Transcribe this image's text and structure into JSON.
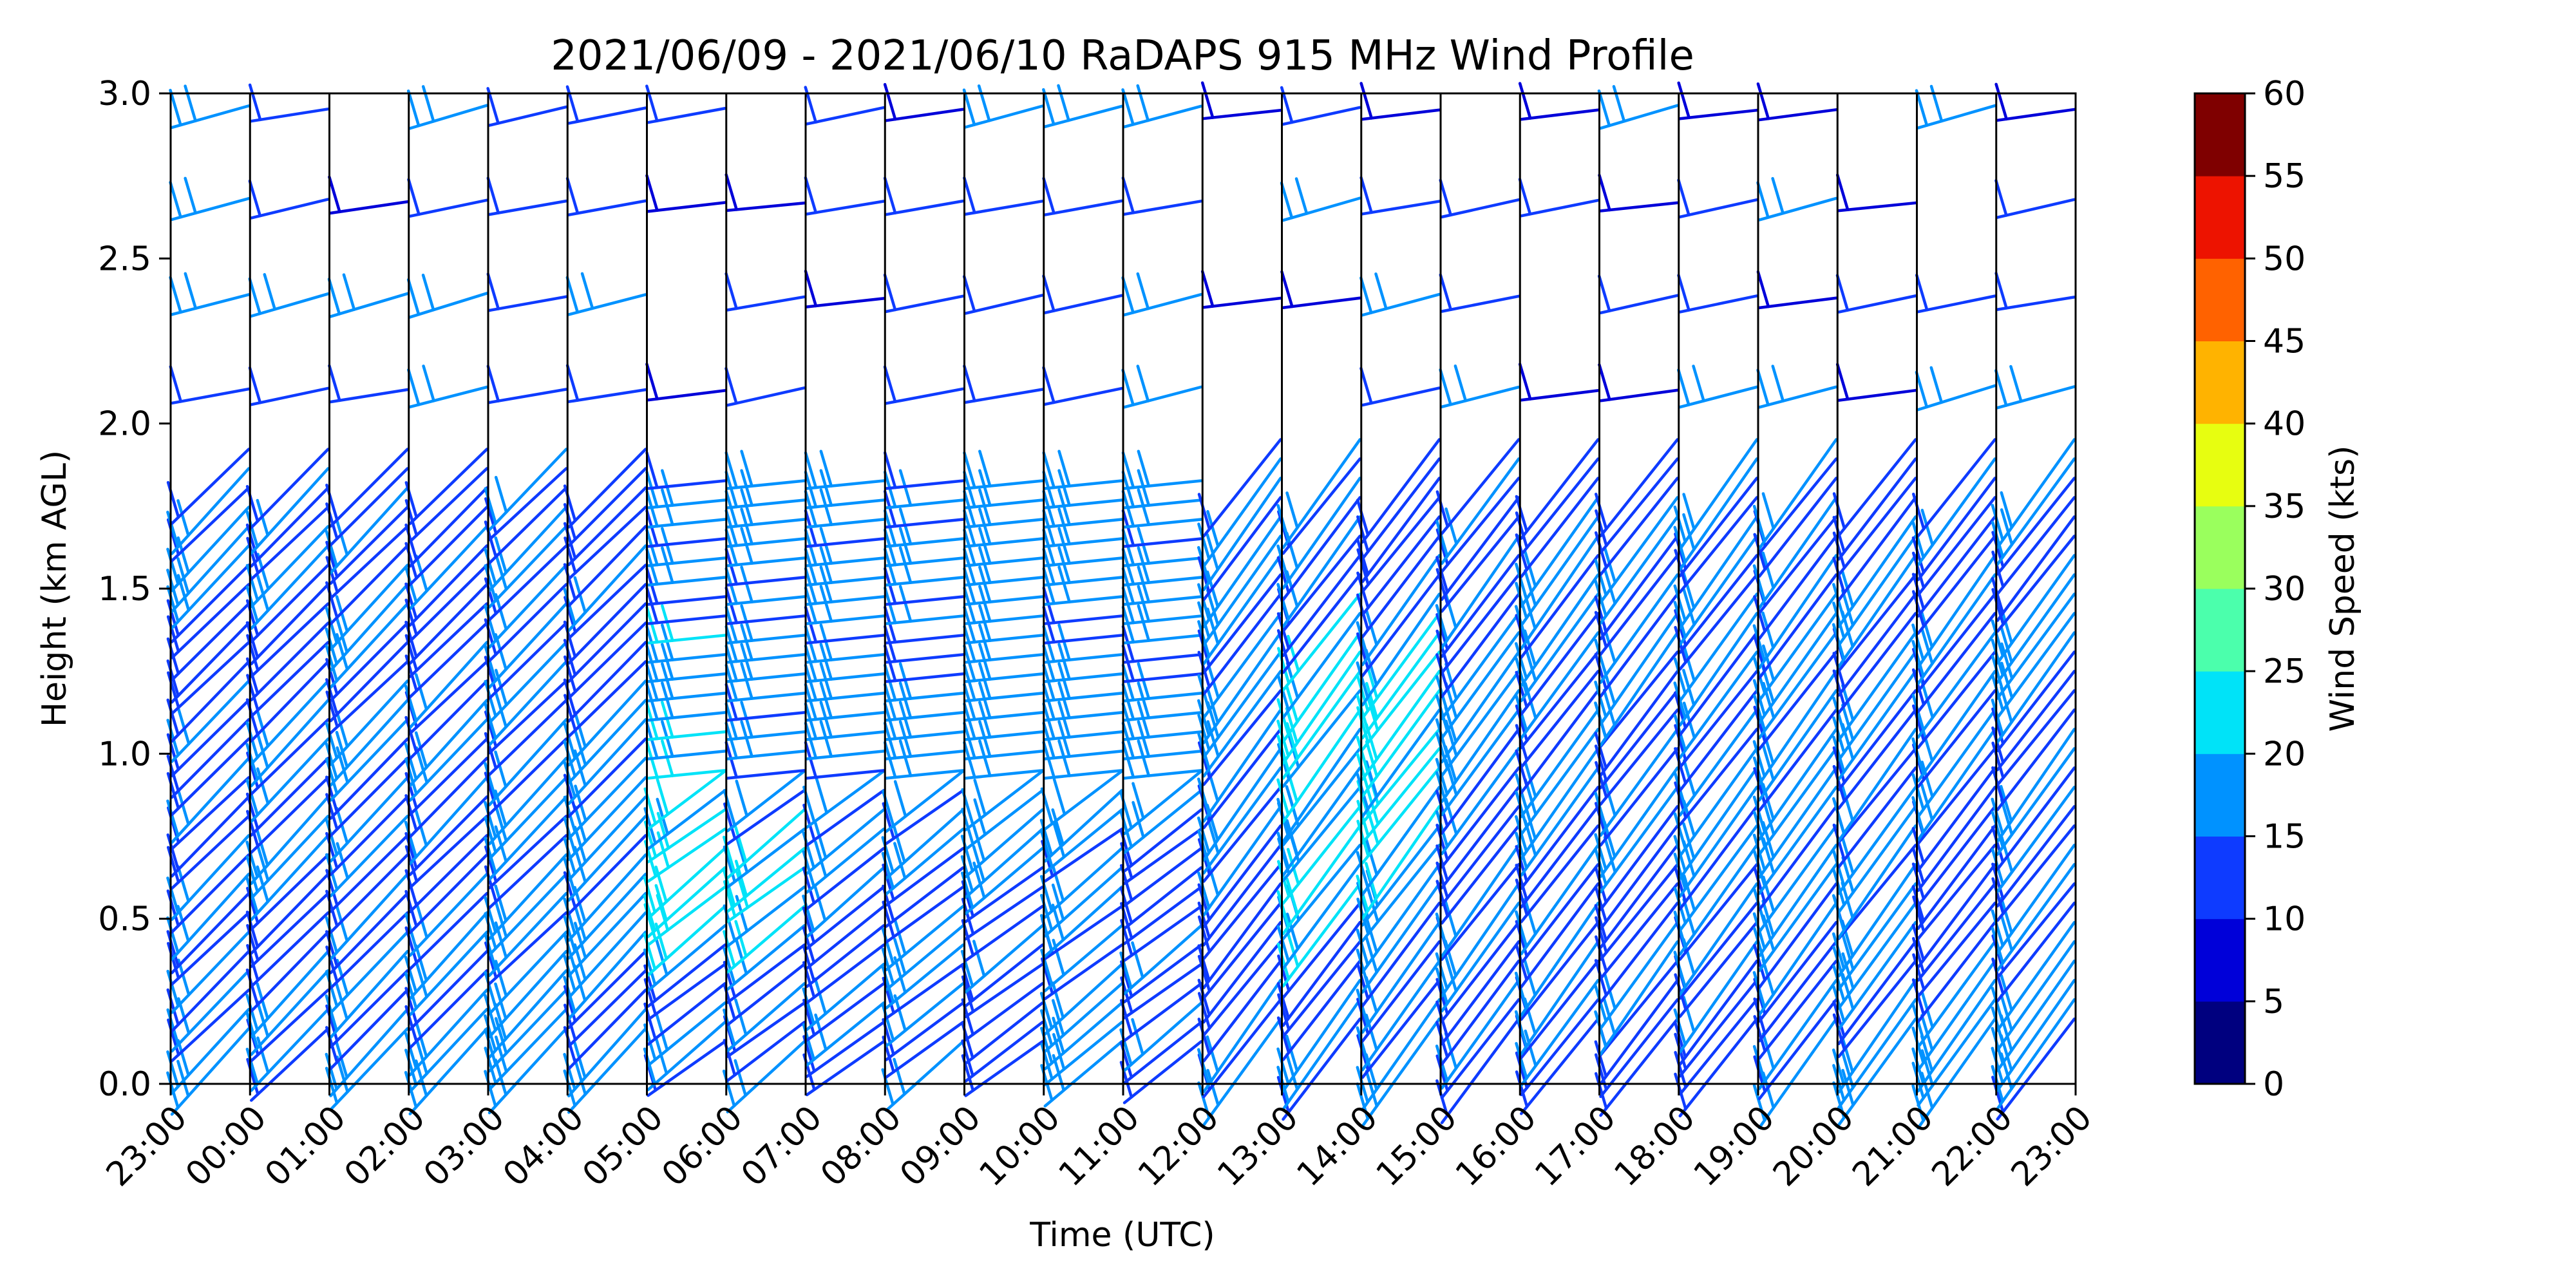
{
  "chart_data": {
    "type": "wind-barb profile",
    "title": "2021/06/09 - 2021/06/10 RaDAPS 915 MHz Wind Profile",
    "xlabel": "Time (UTC)",
    "ylabel": "Height (km AGL)",
    "x_tick_labels": [
      "23:00",
      "00:00",
      "01:00",
      "02:00",
      "03:00",
      "04:00",
      "05:00",
      "06:00",
      "07:00",
      "08:00",
      "09:00",
      "10:00",
      "11:00",
      "12:00",
      "13:00",
      "14:00",
      "15:00",
      "16:00",
      "17:00",
      "18:00",
      "19:00",
      "20:00",
      "21:00",
      "22:00",
      "23:00"
    ],
    "y_tick_labels": [
      "0.0",
      "0.5",
      "1.0",
      "1.5",
      "2.0",
      "2.5",
      "3.0"
    ],
    "ylim": [
      0,
      3.0
    ],
    "vertical_separators": "hourly",
    "colorbar": {
      "label": "Wind Speed (kts)",
      "ticks": [
        "0",
        "5",
        "10",
        "15",
        "20",
        "25",
        "30",
        "35",
        "40",
        "45",
        "50",
        "55",
        "60"
      ],
      "colors": [
        "#00007f",
        "#0000d9",
        "#0e3bff",
        "#0092ff",
        "#00e3f8",
        "#4bffac",
        "#9aff5d",
        "#e7fe10",
        "#ffb300",
        "#ff6200",
        "#ed1300",
        "#7f0000"
      ]
    },
    "wind_speed_kts_approx": {
      "lower_levels_0_to_1.8km": "10-25, maximum ~22 kts near 1.0-1.3 km at 06:00-07:00 and 13:00-14:00",
      "upper_levels_1.8_to_3.0km": "5-20, sparser"
    }
  }
}
